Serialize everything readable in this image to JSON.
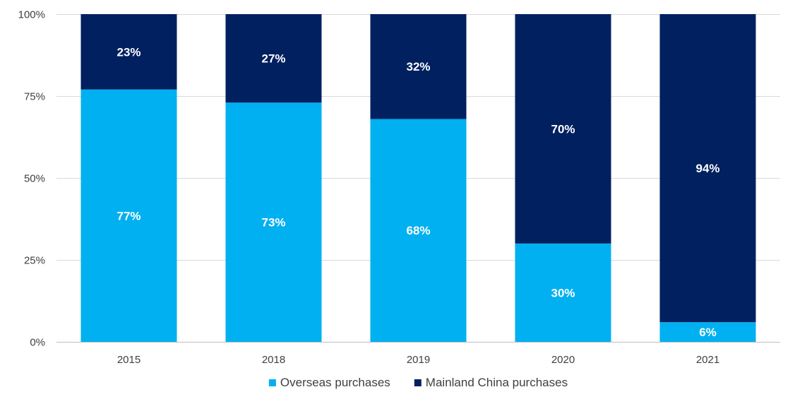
{
  "chart_data": {
    "type": "bar",
    "stacked": true,
    "percent_stacked": true,
    "categories": [
      "2015",
      "2018",
      "2019",
      "2020",
      "2021"
    ],
    "series": [
      {
        "name": "Overseas purchases",
        "values": [
          77,
          73,
          68,
          30,
          6
        ],
        "color": "#00B0F0"
      },
      {
        "name": "Mainland China purchases",
        "values": [
          23,
          27,
          32,
          70,
          94
        ],
        "color": "#002060"
      }
    ],
    "data_labels": [
      [
        "77%",
        "73%",
        "68%",
        "30%",
        "6%"
      ],
      [
        "23%",
        "27%",
        "32%",
        "70%",
        "94%"
      ]
    ],
    "ylim": [
      0,
      100
    ],
    "yticks": [
      0,
      25,
      50,
      75,
      100
    ],
    "ytick_labels": [
      "0%",
      "25%",
      "50%",
      "75%",
      "100%"
    ],
    "grid": true,
    "legend_position": "bottom-center",
    "title": "",
    "xlabel": "",
    "ylabel": ""
  }
}
